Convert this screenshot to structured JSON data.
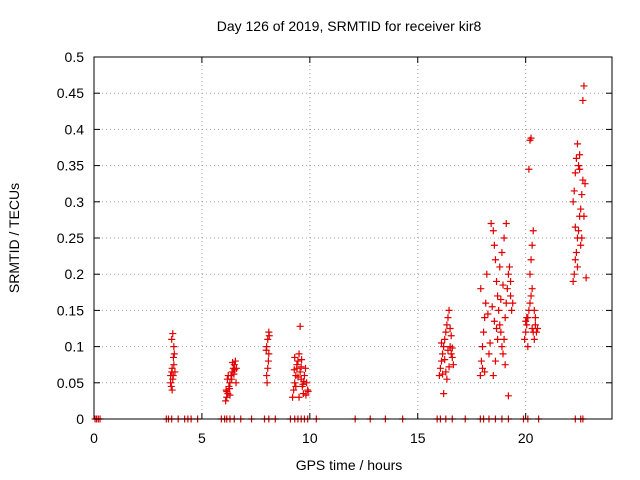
{
  "chart_data": {
    "type": "scatter",
    "title": "Day 126 of 2019, SRMTID for receiver kir8",
    "xlabel": "GPS time / hours",
    "ylabel": "SRMTID / TECUs",
    "xlim": [
      0,
      24
    ],
    "ylim": [
      0,
      0.5
    ],
    "grid": true,
    "marker": "+",
    "color": "#e00000",
    "xticks": [
      0,
      5,
      10,
      15,
      20
    ],
    "yticks": [
      0,
      0.05,
      0.1,
      0.15,
      0.2,
      0.25,
      0.3,
      0.35,
      0.4,
      0.45,
      0.5
    ],
    "xtick_labels": [
      "0",
      "5",
      "10",
      "15",
      "20"
    ],
    "ytick_labels": [
      "0",
      "0.05",
      "0.1",
      "0.15",
      "0.2",
      "0.25",
      "0.3",
      "0.35",
      "0.4",
      "0.45",
      "0.5"
    ],
    "series": [
      {
        "name": "SRMTID",
        "points": [
          [
            0.05,
            0
          ],
          [
            0.12,
            0
          ],
          [
            0.2,
            0
          ],
          [
            0.28,
            0
          ],
          [
            3.35,
            0
          ],
          [
            3.45,
            0
          ],
          [
            3.6,
            0
          ],
          [
            3.9,
            0
          ],
          [
            4.2,
            0
          ],
          [
            4.35,
            0
          ],
          [
            4.5,
            0
          ],
          [
            4.8,
            0
          ],
          [
            5.9,
            0
          ],
          [
            6.05,
            0
          ],
          [
            6.15,
            0
          ],
          [
            6.3,
            0
          ],
          [
            6.5,
            0
          ],
          [
            6.8,
            0
          ],
          [
            7.3,
            0
          ],
          [
            7.9,
            0
          ],
          [
            8.1,
            0
          ],
          [
            8.4,
            0
          ],
          [
            9.1,
            0
          ],
          [
            9.3,
            0
          ],
          [
            9.45,
            0
          ],
          [
            9.6,
            0
          ],
          [
            9.75,
            0
          ],
          [
            9.9,
            0
          ],
          [
            10.3,
            0
          ],
          [
            12.1,
            0
          ],
          [
            12.8,
            0
          ],
          [
            13.5,
            0
          ],
          [
            14.3,
            0
          ],
          [
            15.9,
            0
          ],
          [
            16.05,
            0
          ],
          [
            16.3,
            0
          ],
          [
            16.6,
            0
          ],
          [
            17.2,
            0
          ],
          [
            17.9,
            0
          ],
          [
            18.05,
            0
          ],
          [
            18.3,
            0
          ],
          [
            18.6,
            0
          ],
          [
            18.9,
            0
          ],
          [
            19.2,
            0
          ],
          [
            19.9,
            0
          ],
          [
            20.1,
            0
          ],
          [
            20.6,
            0
          ],
          [
            22.3,
            0
          ],
          [
            22.55,
            0
          ],
          [
            22.65,
            0
          ],
          [
            3.55,
            0.06
          ],
          [
            3.6,
            0.065
          ],
          [
            3.62,
            0.07
          ],
          [
            3.65,
            0.055
          ],
          [
            3.58,
            0.045
          ],
          [
            3.7,
            0.075
          ],
          [
            3.68,
            0.085
          ],
          [
            3.72,
            0.09
          ],
          [
            3.6,
            0.11
          ],
          [
            3.65,
            0.118
          ],
          [
            3.7,
            0.1
          ],
          [
            3.55,
            0.05
          ],
          [
            3.75,
            0.065
          ],
          [
            3.62,
            0.04
          ],
          [
            3.67,
            0.06
          ],
          [
            6.1,
            0.025
          ],
          [
            6.15,
            0.03
          ],
          [
            6.2,
            0.035
          ],
          [
            6.12,
            0.04
          ],
          [
            6.25,
            0.045
          ],
          [
            6.3,
            0.05
          ],
          [
            6.18,
            0.055
          ],
          [
            6.35,
            0.06
          ],
          [
            6.4,
            0.065
          ],
          [
            6.45,
            0.07
          ],
          [
            6.5,
            0.075
          ],
          [
            6.55,
            0.08
          ],
          [
            6.6,
            0.07
          ],
          [
            6.38,
            0.055
          ],
          [
            6.28,
            0.042
          ],
          [
            6.22,
            0.06
          ],
          [
            6.48,
            0.062
          ],
          [
            6.52,
            0.068
          ],
          [
            6.15,
            0.038
          ],
          [
            6.42,
            0.078
          ],
          [
            6.3,
            0.033
          ],
          [
            6.58,
            0.05
          ],
          [
            8.0,
            0.06
          ],
          [
            8.05,
            0.07
          ],
          [
            8.1,
            0.09
          ],
          [
            8.0,
            0.1
          ],
          [
            8.05,
            0.11
          ],
          [
            8.1,
            0.12
          ],
          [
            7.98,
            0.095
          ],
          [
            8.12,
            0.115
          ],
          [
            8.08,
            0.08
          ],
          [
            8.02,
            0.05
          ],
          [
            9.2,
            0.03
          ],
          [
            9.25,
            0.04
          ],
          [
            9.3,
            0.05
          ],
          [
            9.35,
            0.06
          ],
          [
            9.4,
            0.07
          ],
          [
            9.45,
            0.08
          ],
          [
            9.5,
            0.09
          ],
          [
            9.55,
            0.065
          ],
          [
            9.6,
            0.055
          ],
          [
            9.65,
            0.045
          ],
          [
            9.7,
            0.035
          ],
          [
            9.75,
            0.06
          ],
          [
            9.8,
            0.07
          ],
          [
            9.85,
            0.05
          ],
          [
            9.9,
            0.04
          ],
          [
            9.55,
            0.128
          ],
          [
            9.3,
            0.085
          ],
          [
            9.4,
            0.075
          ],
          [
            9.45,
            0.058
          ],
          [
            9.6,
            0.072
          ],
          [
            9.35,
            0.045
          ],
          [
            9.5,
            0.03
          ],
          [
            9.28,
            0.068
          ],
          [
            9.62,
            0.082
          ],
          [
            9.68,
            0.048
          ],
          [
            9.72,
            0.052
          ],
          [
            9.82,
            0.033
          ],
          [
            9.92,
            0.038
          ],
          [
            16.0,
            0.06
          ],
          [
            16.05,
            0.07
          ],
          [
            16.1,
            0.08
          ],
          [
            16.15,
            0.09
          ],
          [
            16.2,
            0.1
          ],
          [
            16.25,
            0.11
          ],
          [
            16.3,
            0.12
          ],
          [
            16.35,
            0.13
          ],
          [
            16.4,
            0.14
          ],
          [
            16.45,
            0.15
          ],
          [
            16.5,
            0.1
          ],
          [
            16.55,
            0.09
          ],
          [
            16.6,
            0.085
          ],
          [
            16.65,
            0.075
          ],
          [
            16.2,
            0.035
          ],
          [
            16.3,
            0.065
          ],
          [
            16.4,
            0.095
          ],
          [
            16.5,
            0.125
          ],
          [
            16.1,
            0.105
          ],
          [
            16.35,
            0.055
          ],
          [
            16.45,
            0.072
          ],
          [
            16.25,
            0.082
          ],
          [
            16.15,
            0.062
          ],
          [
            16.55,
            0.115
          ],
          [
            16.6,
            0.098
          ],
          [
            17.9,
            0.06
          ],
          [
            17.95,
            0.08
          ],
          [
            18.0,
            0.1
          ],
          [
            18.05,
            0.12
          ],
          [
            18.1,
            0.14
          ],
          [
            18.15,
            0.16
          ],
          [
            18.2,
            0.2
          ],
          [
            17.92,
            0.18
          ],
          [
            18.0,
            0.07
          ],
          [
            18.1,
            0.065
          ],
          [
            18.3,
            0.09
          ],
          [
            18.4,
            0.27
          ],
          [
            18.5,
            0.26
          ],
          [
            18.55,
            0.24
          ],
          [
            18.6,
            0.22
          ],
          [
            18.65,
            0.19
          ],
          [
            18.7,
            0.17
          ],
          [
            18.75,
            0.15
          ],
          [
            18.8,
            0.13
          ],
          [
            18.85,
            0.12
          ],
          [
            18.9,
            0.1
          ],
          [
            18.95,
            0.09
          ],
          [
            19.0,
            0.11
          ],
          [
            19.05,
            0.14
          ],
          [
            19.1,
            0.16
          ],
          [
            19.15,
            0.18
          ],
          [
            19.2,
            0.2
          ],
          [
            19.25,
            0.21
          ],
          [
            19.3,
            0.17
          ],
          [
            19.35,
            0.15
          ],
          [
            19.1,
            0.27
          ],
          [
            19.0,
            0.25
          ],
          [
            18.9,
            0.23
          ],
          [
            18.8,
            0.21
          ],
          [
            18.7,
            0.11
          ],
          [
            18.6,
            0.08
          ],
          [
            18.5,
            0.06
          ],
          [
            19.2,
            0.032
          ],
          [
            19.3,
            0.19
          ],
          [
            19.4,
            0.16
          ],
          [
            18.45,
            0.155
          ],
          [
            18.55,
            0.135
          ],
          [
            18.65,
            0.125
          ],
          [
            18.35,
            0.105
          ],
          [
            19.05,
            0.075
          ],
          [
            18.95,
            0.185
          ],
          [
            18.85,
            0.165
          ],
          [
            18.25,
            0.145
          ],
          [
            19.95,
            0.11
          ],
          [
            20.0,
            0.12
          ],
          [
            20.05,
            0.13
          ],
          [
            20.1,
            0.14
          ],
          [
            20.15,
            0.15
          ],
          [
            20.2,
            0.16
          ],
          [
            20.25,
            0.17
          ],
          [
            20.3,
            0.18
          ],
          [
            20.35,
            0.12
          ],
          [
            20.4,
            0.11
          ],
          [
            20.45,
            0.13
          ],
          [
            20.5,
            0.12
          ],
          [
            20.2,
            0.2
          ],
          [
            20.25,
            0.22
          ],
          [
            20.3,
            0.24
          ],
          [
            20.35,
            0.26
          ],
          [
            20.15,
            0.345
          ],
          [
            20.2,
            0.385
          ],
          [
            20.25,
            0.388
          ],
          [
            20.1,
            0.1
          ],
          [
            20.05,
            0.14
          ],
          [
            20.0,
            0.135
          ],
          [
            20.4,
            0.15
          ],
          [
            20.45,
            0.14
          ],
          [
            20.3,
            0.125
          ],
          [
            20.55,
            0.125
          ],
          [
            22.2,
            0.19
          ],
          [
            22.25,
            0.2
          ],
          [
            22.3,
            0.22
          ],
          [
            22.35,
            0.23
          ],
          [
            22.4,
            0.25
          ],
          [
            22.45,
            0.26
          ],
          [
            22.5,
            0.28
          ],
          [
            22.55,
            0.29
          ],
          [
            22.6,
            0.31
          ],
          [
            22.65,
            0.33
          ],
          [
            22.2,
            0.3
          ],
          [
            22.25,
            0.315
          ],
          [
            22.3,
            0.34
          ],
          [
            22.35,
            0.36
          ],
          [
            22.4,
            0.38
          ],
          [
            22.45,
            0.35
          ],
          [
            22.5,
            0.365
          ],
          [
            22.55,
            0.24
          ],
          [
            22.6,
            0.25
          ],
          [
            22.7,
            0.28
          ],
          [
            22.75,
            0.325
          ],
          [
            22.8,
            0.195
          ],
          [
            22.65,
            0.44
          ],
          [
            22.7,
            0.46
          ],
          [
            22.3,
            0.265
          ],
          [
            22.4,
            0.21
          ],
          [
            22.5,
            0.345
          ]
        ]
      }
    ]
  }
}
